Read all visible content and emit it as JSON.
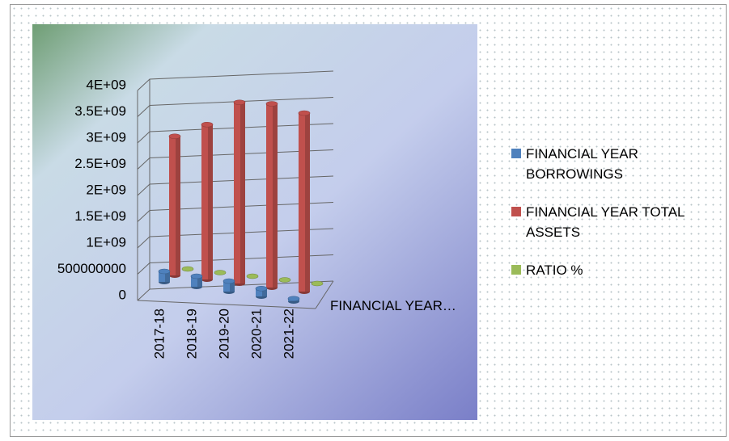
{
  "chart_data": {
    "type": "bar3d",
    "categories": [
      "2017-18",
      "2018-19",
      "2019-20",
      "2020-21",
      "2021-22"
    ],
    "series": [
      {
        "name": "FINANCIAL YEAR BORROWINGS",
        "color": "#4f81bd",
        "values": [
          200000000,
          200000000,
          200000000,
          150000000,
          50000000
        ]
      },
      {
        "name": "FINANCIAL YEAR TOTAL ASSETS",
        "color": "#c0504d",
        "values": [
          2650000000,
          2950000000,
          3450000000,
          3500000000,
          3400000000
        ]
      },
      {
        "name": "RATIO %",
        "color": "#9bbb59",
        "values": [
          8,
          7,
          6,
          4,
          2
        ]
      }
    ],
    "depth_axis_label": "FINANCIAL YEAR…",
    "ylim": [
      0,
      4000000000
    ],
    "yticks": [
      0,
      500000000,
      {
        "value": 1000000000,
        "label": "1E+09"
      },
      {
        "value": 1500000000,
        "label": "1.5E+09"
      },
      {
        "value": 2000000000,
        "label": "2E+09"
      },
      {
        "value": 2500000000,
        "label": "2.5E+09"
      },
      {
        "value": 3000000000,
        "label": "3E+09"
      },
      {
        "value": 3500000000,
        "label": "3.5E+09"
      },
      {
        "value": 4000000000,
        "label": "4E+09"
      }
    ],
    "grid": true,
    "legend": "right"
  }
}
